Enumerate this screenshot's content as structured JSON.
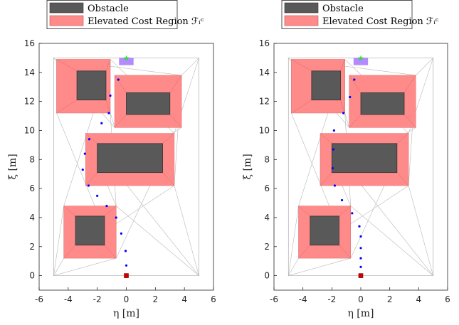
{
  "chart_data": [
    {
      "type": "scatter",
      "xlabel": "η [m]",
      "ylabel": "ξ [m]",
      "xlim": [
        -6,
        6
      ],
      "ylim": [
        -1,
        16
      ],
      "xticks": [
        "-6",
        "-4",
        "-2",
        "0",
        "2",
        "4",
        "6"
      ],
      "yticks": [
        "0",
        "2",
        "4",
        "6",
        "8",
        "10",
        "12",
        "14",
        "16"
      ],
      "legend": {
        "placement": "top-left",
        "entries": [
          "Obstacle",
          "Elevated Cost Region ℱᵢᶜ"
        ]
      },
      "colors": {
        "obstacle": "#595959",
        "region": "#ff8a8a",
        "path": "#0000ff",
        "start": "#d00000",
        "goal": "#33dd33",
        "goal_region": "#b38bff",
        "mesh": "#b8b8b8"
      },
      "boundary": [
        [
          -5,
          0
        ],
        [
          5,
          0
        ],
        [
          5,
          15
        ],
        [
          -5,
          15
        ]
      ],
      "obstacles": [
        [
          -3.4,
          12.1,
          -1.4,
          14.1
        ],
        [
          0,
          11.1,
          3,
          12.6
        ],
        [
          -2,
          7.1,
          2.5,
          9.1
        ],
        [
          -3.5,
          2.1,
          -1.5,
          4.1
        ]
      ],
      "regions": [
        [
          -4.8,
          11.2,
          -1.1,
          14.9
        ],
        [
          -0.8,
          10.2,
          3.8,
          13.8
        ],
        [
          -2.8,
          6.2,
          3.3,
          9.8
        ],
        [
          -4.3,
          1.2,
          -0.7,
          4.8
        ]
      ],
      "start": [
        0,
        0
      ],
      "goal": [
        0,
        15
      ],
      "goal_region": [
        -0.5,
        14.5,
        0.5,
        15
      ],
      "path": {
        "x": [
          0,
          -0.05,
          -0.35,
          -0.7,
          -1.35,
          -2.0,
          -2.6,
          -3.0,
          -2.85,
          -2.55,
          -1.7,
          -1.2,
          -1.1,
          -0.55
        ],
        "y": [
          0.7,
          1.7,
          2.9,
          4.0,
          4.8,
          5.5,
          6.2,
          7.3,
          8.4,
          9.4,
          10.5,
          11.2,
          12.4,
          13.5
        ]
      }
    },
    {
      "type": "scatter",
      "xlabel": "η [m]",
      "ylabel": "ξ [m]",
      "xlim": [
        -6,
        6
      ],
      "ylim": [
        -1,
        16
      ],
      "xticks": [
        "-6",
        "-4",
        "-2",
        "0",
        "2",
        "4",
        "6"
      ],
      "yticks": [
        "0",
        "2",
        "4",
        "6",
        "8",
        "10",
        "12",
        "14",
        "16"
      ],
      "legend": {
        "placement": "top-left",
        "entries": [
          "Obstacle",
          "Elevated Cost Region ℱᵢᶜ"
        ]
      },
      "colors": {
        "obstacle": "#595959",
        "region": "#ff8a8a",
        "path": "#0000ff",
        "start": "#d00000",
        "goal": "#33dd33",
        "goal_region": "#b38bff",
        "mesh": "#b8b8b8"
      },
      "boundary": [
        [
          -5,
          0
        ],
        [
          5,
          0
        ],
        [
          5,
          15
        ],
        [
          -5,
          15
        ]
      ],
      "obstacles": [
        [
          -3.4,
          12.1,
          -1.4,
          14.1
        ],
        [
          0,
          11.1,
          3,
          12.6
        ],
        [
          -2,
          7.1,
          2.5,
          9.1
        ],
        [
          -3.5,
          2.1,
          -1.5,
          4.1
        ]
      ],
      "regions": [
        [
          -4.8,
          11.2,
          -1.1,
          14.9
        ],
        [
          -0.8,
          10.2,
          3.8,
          13.8
        ],
        [
          -2.8,
          6.2,
          3.3,
          9.8
        ],
        [
          -4.3,
          1.2,
          -0.7,
          4.8
        ]
      ],
      "start": [
        0,
        0
      ],
      "goal": [
        0,
        15
      ],
      "goal_region": [
        -0.5,
        14.5,
        0.5,
        15
      ],
      "path": {
        "x": [
          0,
          0,
          0,
          0,
          -0.1,
          -0.6,
          -1.3,
          -1.8,
          -1.95,
          -1.9,
          -1.85,
          -1.2,
          -0.75,
          -0.45
        ],
        "y": [
          0.6,
          1.2,
          1.9,
          2.7,
          3.4,
          4.3,
          5.2,
          6.2,
          7.4,
          8.7,
          10.0,
          11.2,
          12.3,
          13.5
        ]
      }
    }
  ]
}
